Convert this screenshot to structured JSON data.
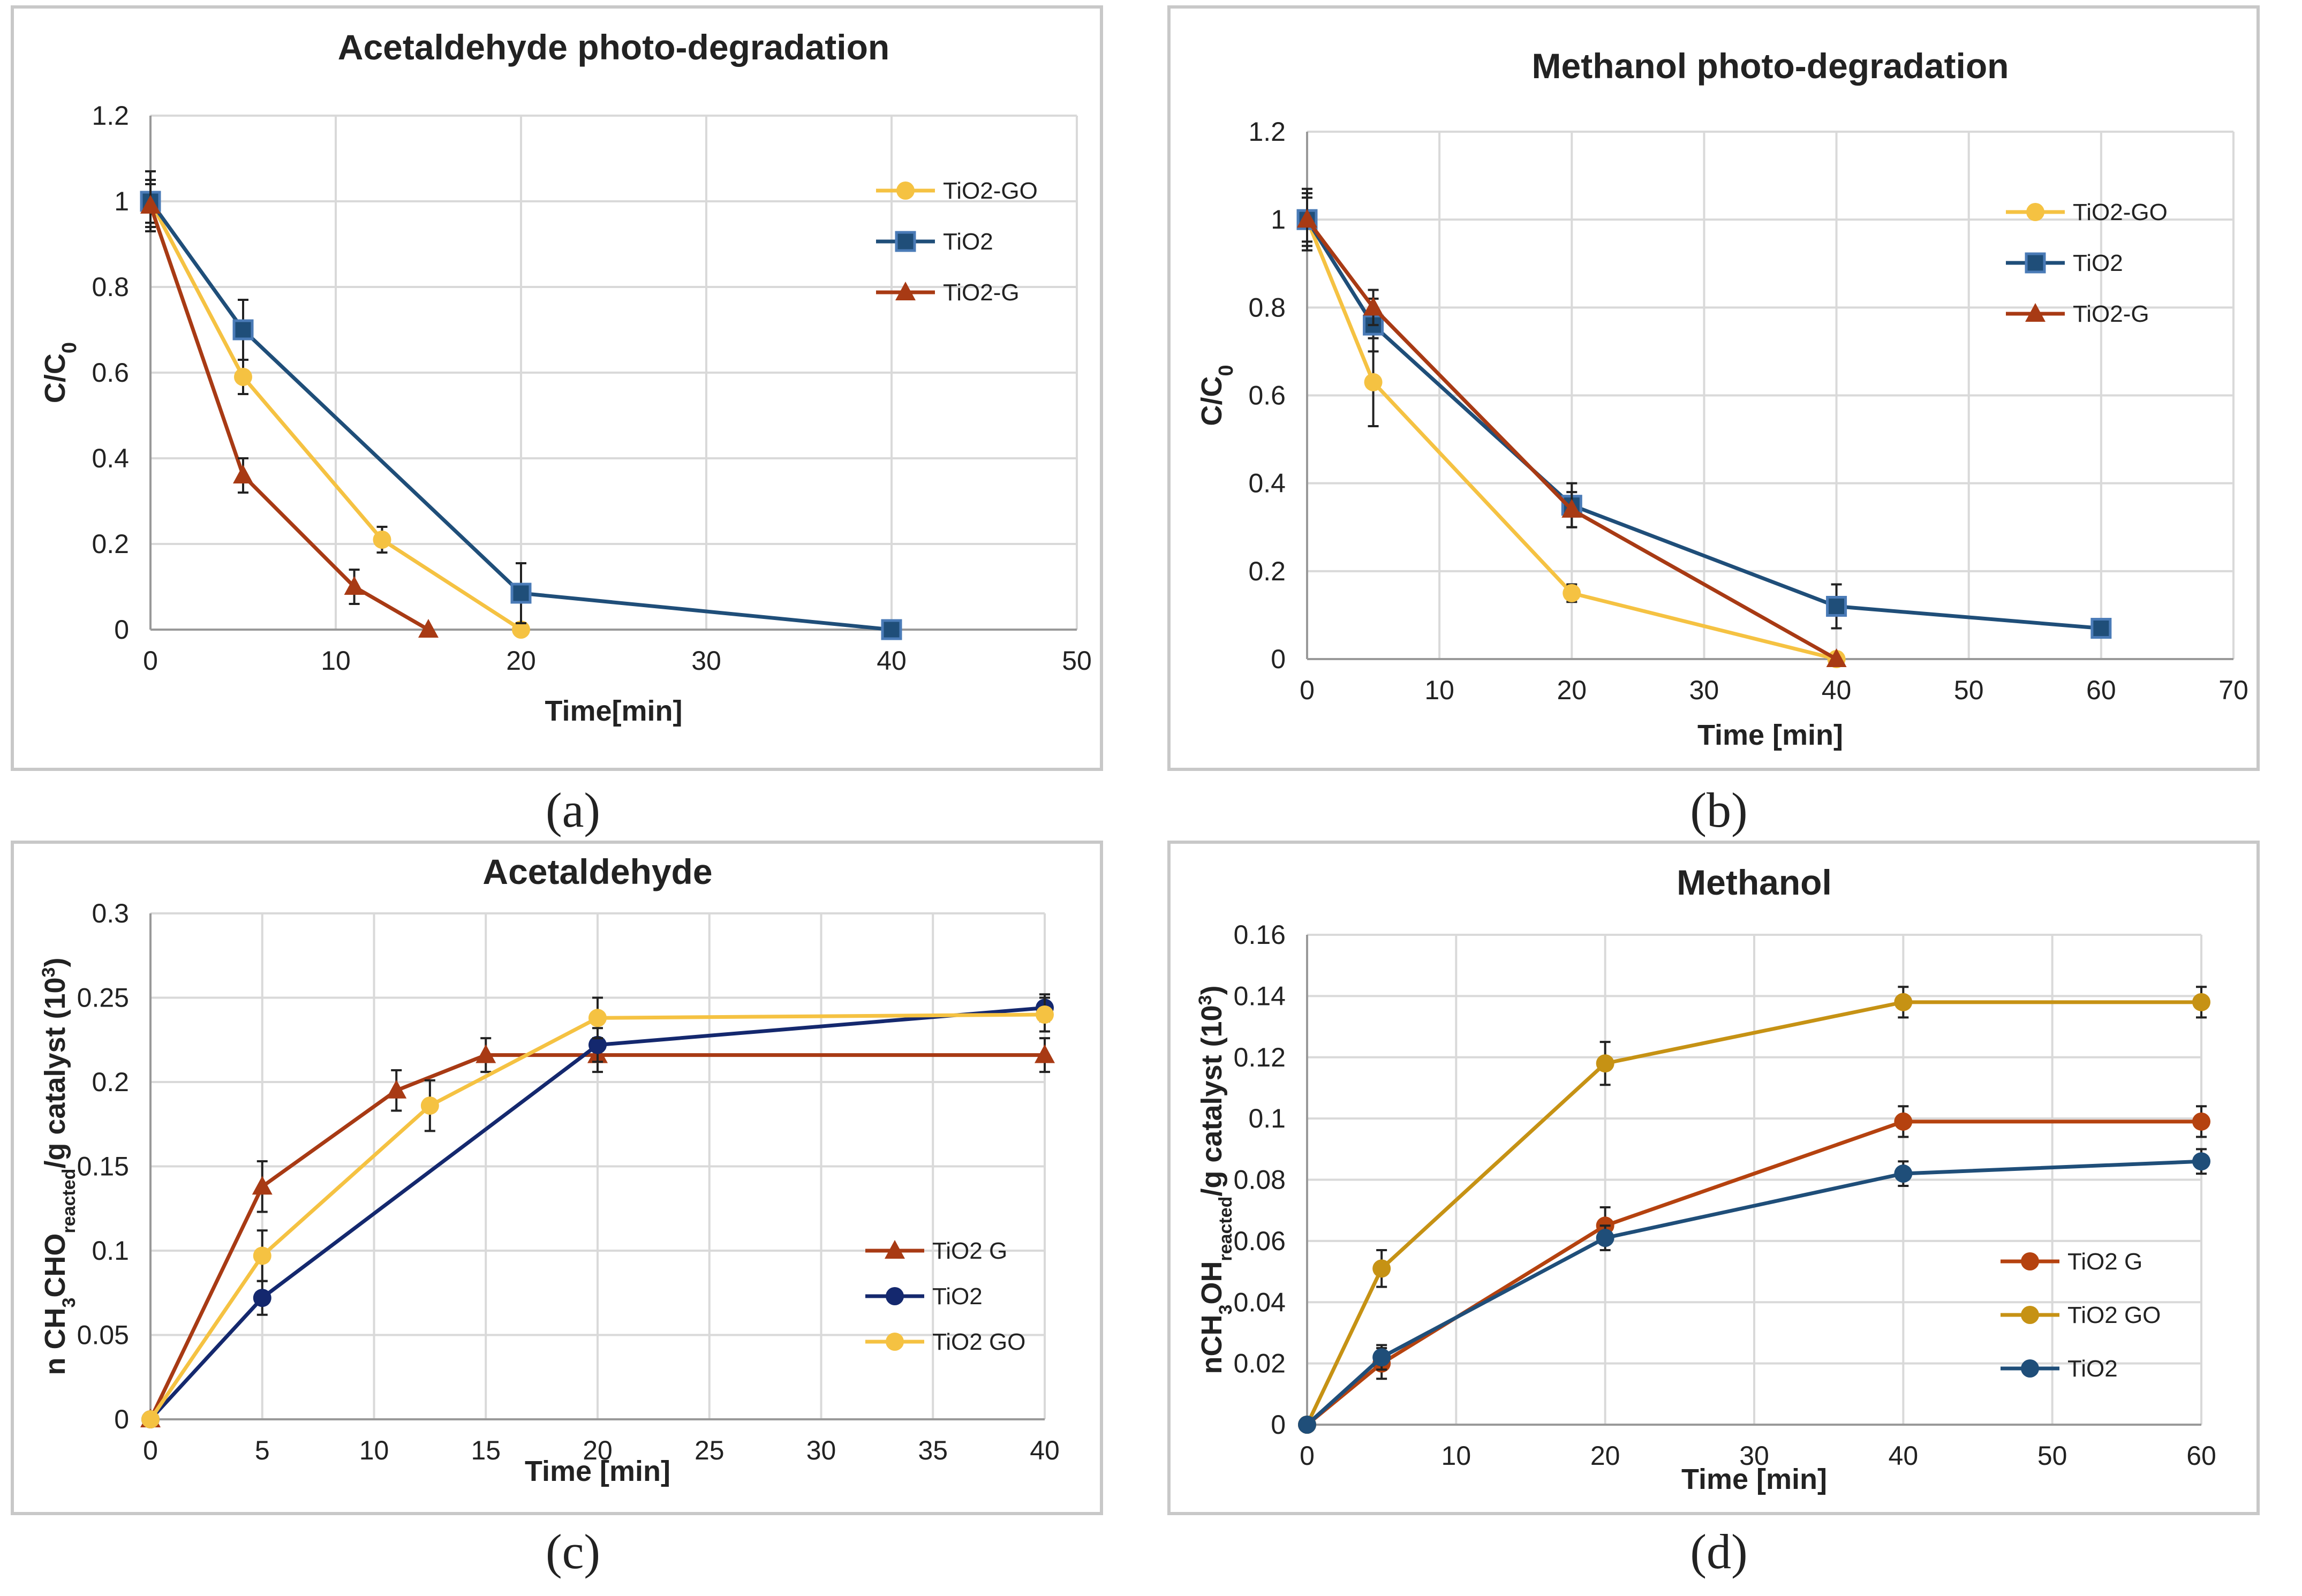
{
  "panel_labels": {
    "a": "(a)",
    "b": "(b)",
    "c": "(c)",
    "d": "(d)"
  },
  "chart_data": [
    {
      "id": "a",
      "type": "line",
      "title": "Acetaldehyde photo-degradation",
      "xlabel": "Time[min]",
      "ylabel": "C/C",
      "ylabel_sub": "0",
      "xlim": [
        0,
        50
      ],
      "ylim": [
        0,
        1.2
      ],
      "xticks": [
        0,
        10,
        20,
        30,
        40,
        50
      ],
      "yticks": [
        0,
        0.2,
        0.4,
        0.6,
        0.8,
        1,
        1.2
      ],
      "ytick_labels": [
        "0",
        "0.2",
        "0.4",
        "0.6",
        "0.8",
        "1",
        "1.2"
      ],
      "series": [
        {
          "name": "TiO2-GO",
          "color": "#f5c242",
          "marker": "circle",
          "x": [
            0,
            5,
            12.5,
            20
          ],
          "y": [
            1,
            0.59,
            0.21,
            0
          ],
          "err": [
            0.05,
            0.04,
            0.03,
            0
          ]
        },
        {
          "name": "TiO2",
          "color": "#1f4e79",
          "marker": "square",
          "x": [
            0,
            5,
            20,
            40
          ],
          "y": [
            1,
            0.7,
            0.085,
            0
          ],
          "err": [
            0.07,
            0.07,
            0.07,
            0
          ]
        },
        {
          "name": "TiO2-G",
          "color": "#a83a14",
          "marker": "triangle",
          "x": [
            0,
            5,
            11,
            15
          ],
          "y": [
            0.99,
            0.36,
            0.1,
            0
          ],
          "err": [
            0.05,
            0.04,
            0.04,
            0
          ]
        }
      ]
    },
    {
      "id": "b",
      "type": "line",
      "title": "Methanol photo-degradation",
      "xlabel": "Time [min]",
      "ylabel": "C/C",
      "ylabel_sub": "0",
      "xlim": [
        0,
        70
      ],
      "ylim": [
        0,
        1.2
      ],
      "xticks": [
        0,
        10,
        20,
        30,
        40,
        50,
        60,
        70
      ],
      "yticks": [
        0,
        0.2,
        0.4,
        0.6,
        0.8,
        1,
        1.2
      ],
      "ytick_labels": [
        "0",
        "0.2",
        "0.4",
        "0.6",
        "0.8",
        "1",
        "1.2"
      ],
      "series": [
        {
          "name": "TiO2-GO",
          "color": "#f5c242",
          "marker": "circle",
          "x": [
            0,
            5,
            20,
            40
          ],
          "y": [
            1,
            0.63,
            0.15,
            0
          ],
          "err": [
            0.06,
            0.1,
            0.02,
            0
          ]
        },
        {
          "name": "TiO2",
          "color": "#1f4e79",
          "marker": "square",
          "x": [
            0,
            5,
            20,
            40,
            60
          ],
          "y": [
            1,
            0.76,
            0.35,
            0.12,
            0.07
          ],
          "err": [
            0.07,
            0.06,
            0.05,
            0.05,
            0.02
          ]
        },
        {
          "name": "TiO2-G",
          "color": "#a83a14",
          "marker": "triangle",
          "x": [
            0,
            5,
            20,
            40
          ],
          "y": [
            1,
            0.8,
            0.34,
            0
          ],
          "err": [
            0.05,
            0.04,
            0.04,
            0
          ]
        }
      ]
    },
    {
      "id": "c",
      "type": "line",
      "title": "Acetaldehyde",
      "xlabel": "Time [min]",
      "ylabel_parts": [
        "n CH",
        "3",
        "CHO",
        "reacted",
        "/g catalyst (10",
        "3",
        ")"
      ],
      "xlim": [
        0,
        40
      ],
      "ylim": [
        0,
        0.3
      ],
      "xticks": [
        0,
        5,
        10,
        15,
        20,
        25,
        30,
        35,
        40
      ],
      "yticks": [
        0,
        0.05,
        0.1,
        0.15,
        0.2,
        0.25,
        0.3
      ],
      "ytick_labels": [
        "0",
        "0.05",
        "0.1",
        "0.15",
        "0.2",
        "0.25",
        "0.3"
      ],
      "series": [
        {
          "name": "TiO2 G",
          "color": "#a83a14",
          "marker": "triangle",
          "x": [
            0,
            5,
            11,
            15,
            20,
            40
          ],
          "y": [
            0,
            0.138,
            0.195,
            0.216,
            0.216,
            0.216
          ],
          "err": [
            0,
            0.015,
            0.012,
            0.01,
            0.01,
            0.01
          ]
        },
        {
          "name": "TiO2",
          "color": "#14286e",
          "marker": "circle",
          "x": [
            0,
            5,
            20,
            40
          ],
          "y": [
            0,
            0.072,
            0.222,
            0.244
          ],
          "err": [
            0,
            0.01,
            0.01,
            0.008
          ]
        },
        {
          "name": "TiO2 GO",
          "color": "#f5c242",
          "marker": "circle",
          "x": [
            0,
            5,
            12.5,
            20,
            40
          ],
          "y": [
            0,
            0.097,
            0.186,
            0.238,
            0.24
          ],
          "err": [
            0,
            0.015,
            0.015,
            0.012,
            0.01
          ]
        }
      ]
    },
    {
      "id": "d",
      "type": "line",
      "title": "Methanol",
      "xlabel": "Time [min]",
      "ylabel_parts": [
        "nCH",
        "3",
        "OH",
        "reacted",
        "/g catalyst (10",
        "3",
        ")"
      ],
      "xlim": [
        0,
        60
      ],
      "ylim": [
        0,
        0.16
      ],
      "xticks": [
        0,
        10,
        20,
        30,
        40,
        50,
        60
      ],
      "yticks": [
        0,
        0.02,
        0.04,
        0.06,
        0.08,
        0.1,
        0.12,
        0.14,
        0.16
      ],
      "ytick_labels": [
        "0",
        "0.02",
        "0.04",
        "0.06",
        "0.08",
        "0.1",
        "0.12",
        "0.14",
        "0.16"
      ],
      "series": [
        {
          "name": "TiO2 G",
          "color": "#b5420f",
          "marker": "circle",
          "x": [
            0,
            5,
            20,
            40,
            60
          ],
          "y": [
            0,
            0.02,
            0.065,
            0.099,
            0.099
          ],
          "err": [
            0,
            0.005,
            0.006,
            0.005,
            0.005
          ]
        },
        {
          "name": "TiO2 GO",
          "color": "#c69214",
          "marker": "circle",
          "x": [
            0,
            5,
            20,
            40,
            60
          ],
          "y": [
            0,
            0.051,
            0.118,
            0.138,
            0.138
          ],
          "err": [
            0,
            0.006,
            0.007,
            0.005,
            0.005
          ]
        },
        {
          "name": "TiO2",
          "color": "#1f4e79",
          "marker": "circle",
          "x": [
            0,
            5,
            20,
            40,
            60
          ],
          "y": [
            0,
            0.022,
            0.061,
            0.082,
            0.086
          ],
          "err": [
            0,
            0.004,
            0.004,
            0.004,
            0.004
          ]
        }
      ]
    }
  ]
}
